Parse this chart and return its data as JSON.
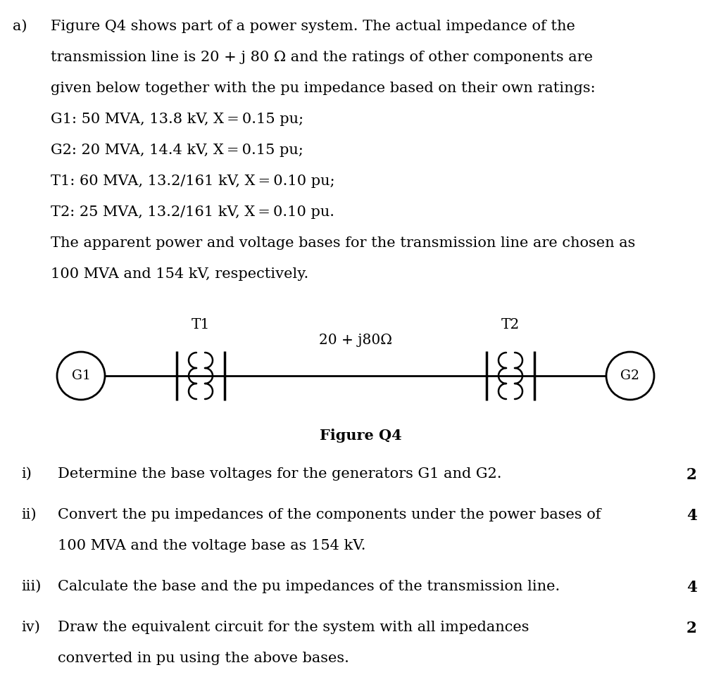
{
  "bg_color": "#ffffff",
  "text_color": "#000000",
  "fig_width": 10.24,
  "fig_height": 9.89,
  "header_prefix": "a)",
  "header_lines": [
    "Figure Q4 shows part of a power system. The actual impedance of the",
    "transmission line is 20 + j 80 Ω and the ratings of other components are",
    "given below together with the pu impedance based on their own ratings:"
  ],
  "spec_lines": [
    "G1: 50 MVA, 13.8 kV, X = 0.15 pu;",
    "G2: 20 MVA, 14.4 kV, X = 0.15 pu;",
    "T1: 60 MVA, 13.2/161 kV, X = 0.10 pu;",
    "T2: 25 MVA, 13.2/161 kV, X = 0.10 pu."
  ],
  "closing_lines": [
    "The apparent power and voltage bases for the transmission line are chosen as",
    "100 MVA and 154 kV, respectively."
  ],
  "figure_label": "Figure Q4",
  "diagram_T1_label": "T1",
  "diagram_T2_label": "T2",
  "diagram_line_label": "20 + j80Ω",
  "diagram_G1_label": "G1",
  "diagram_G2_label": "G2",
  "questions": [
    {
      "roman": "i)",
      "text": "Determine the base voltages for the generators G1 and G2.",
      "marks": "2"
    },
    {
      "roman": "ii)",
      "text_parts": [
        "Convert the pu impedances of the components under the power bases of",
        "100 MVA and the voltage base as 154 kV."
      ],
      "marks": "4"
    },
    {
      "roman": "iii)",
      "text": "Calculate the base and the pu impedances of the transmission line.",
      "marks": "4"
    },
    {
      "roman": "iv)",
      "text_parts": [
        "Draw the equivalent circuit for the system with all impedances",
        "converted in pu using the above bases."
      ],
      "marks": "2"
    }
  ],
  "font_size_body": 15.0,
  "font_size_diagram": 13.5,
  "font_size_marks": 15.5
}
